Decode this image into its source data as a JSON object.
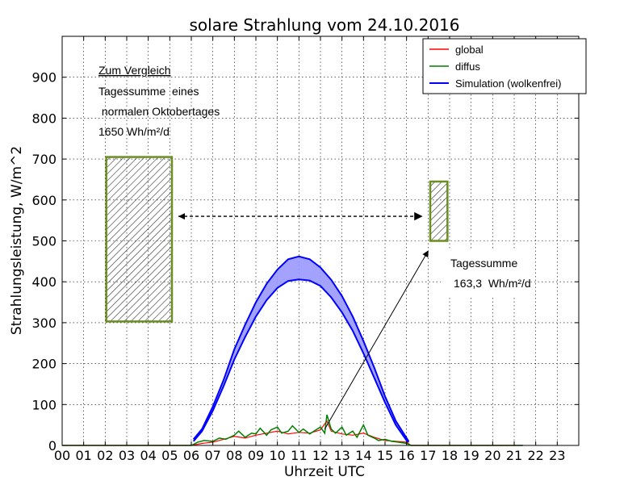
{
  "chart_data": {
    "type": "area",
    "title": "solare Strahlung vom 24.10.2016",
    "xlabel": "Uhrzeit UTC",
    "ylabel": "Strahlungsleistung, W/m^2",
    "xlim": [
      0,
      24
    ],
    "ylim": [
      0,
      1000
    ],
    "grid": true,
    "legend_position": "top-right",
    "x_ticks": [
      "00",
      "01",
      "02",
      "03",
      "04",
      "05",
      "06",
      "07",
      "08",
      "09",
      "10",
      "11",
      "12",
      "13",
      "14",
      "15",
      "16",
      "17",
      "18",
      "19",
      "20",
      "21",
      "22",
      "23"
    ],
    "y_ticks": [
      0,
      100,
      200,
      300,
      400,
      500,
      600,
      700,
      800,
      900
    ],
    "series": [
      {
        "name": "global",
        "color": "#ff0000",
        "x": [
          0,
          6.0,
          6.5,
          7.0,
          7.5,
          8.0,
          8.5,
          9.0,
          9.5,
          10.0,
          10.5,
          11.0,
          11.5,
          12.0,
          12.3,
          12.5,
          13.0,
          13.5,
          14.0,
          14.5,
          15.0,
          15.5,
          16.0,
          16.2,
          21.4
        ],
        "y": [
          0,
          0,
          5,
          8,
          15,
          22,
          18,
          25,
          30,
          35,
          28,
          32,
          30,
          38,
          60,
          35,
          28,
          25,
          30,
          20,
          12,
          10,
          8,
          0,
          0
        ]
      },
      {
        "name": "diffus",
        "color": "#008000",
        "x": [
          0,
          6.0,
          6.3,
          6.6,
          7.0,
          7.3,
          7.6,
          8.0,
          8.2,
          8.5,
          8.8,
          9.0,
          9.2,
          9.5,
          9.7,
          10.0,
          10.2,
          10.5,
          10.7,
          11.0,
          11.2,
          11.5,
          11.7,
          12.0,
          12.2,
          12.3,
          12.5,
          12.7,
          13.0,
          13.2,
          13.5,
          13.7,
          14.0,
          14.2,
          14.5,
          14.7,
          15.0,
          15.3,
          15.6,
          16.0,
          16.2,
          21.4
        ],
        "y": [
          0,
          0,
          8,
          12,
          10,
          18,
          15,
          25,
          35,
          20,
          30,
          28,
          42,
          25,
          38,
          45,
          30,
          35,
          48,
          32,
          40,
          28,
          35,
          45,
          30,
          75,
          40,
          30,
          45,
          25,
          35,
          20,
          50,
          25,
          18,
          12,
          15,
          10,
          8,
          5,
          0,
          0
        ]
      },
      {
        "name": "Simulation (wolkenfrei)",
        "color": "#0000ff",
        "fill": "#9999ff",
        "x": [
          6.1,
          6.5,
          7.0,
          7.5,
          8.0,
          8.5,
          9.0,
          9.5,
          10.0,
          10.5,
          11.0,
          11.5,
          12.0,
          12.5,
          13.0,
          13.5,
          14.0,
          14.5,
          15.0,
          15.5,
          16.0,
          16.1
        ],
        "y_lower": [
          10,
          35,
          85,
          145,
          210,
          265,
          315,
          355,
          385,
          402,
          406,
          403,
          390,
          362,
          325,
          280,
          225,
          165,
          105,
          50,
          12,
          8
        ],
        "y_upper": [
          15,
          40,
          95,
          160,
          235,
          295,
          350,
          395,
          430,
          455,
          462,
          455,
          435,
          405,
          365,
          315,
          255,
          190,
          120,
          60,
          18,
          10
        ]
      }
    ],
    "annotations": {
      "left_box": {
        "x0": 2.05,
        "x1": 5.1,
        "y0": 303,
        "y1": 705
      },
      "right_box": {
        "x0": 17.1,
        "x1": 17.9,
        "y0": 500,
        "y1": 645
      },
      "double_arrow": {
        "x0": 5.4,
        "x1": 16.7,
        "y": 560
      },
      "pointer_arrow": {
        "x0": 12.2,
        "y0": 40,
        "x1": 17.0,
        "y1": 475
      },
      "text_left_title": "Zum Vergleich",
      "text_left_line1": "Tagessumme  eines",
      "text_left_line2": " normalen Oktobertages",
      "text_left_line3": "1650 Wh/m²/d",
      "text_right_line1": "Tagessumme",
      "text_right_line2": "163,3  Wh/m²/d"
    },
    "colors": {
      "box_edge": "#6b8e23",
      "hatch": "#333333"
    }
  }
}
